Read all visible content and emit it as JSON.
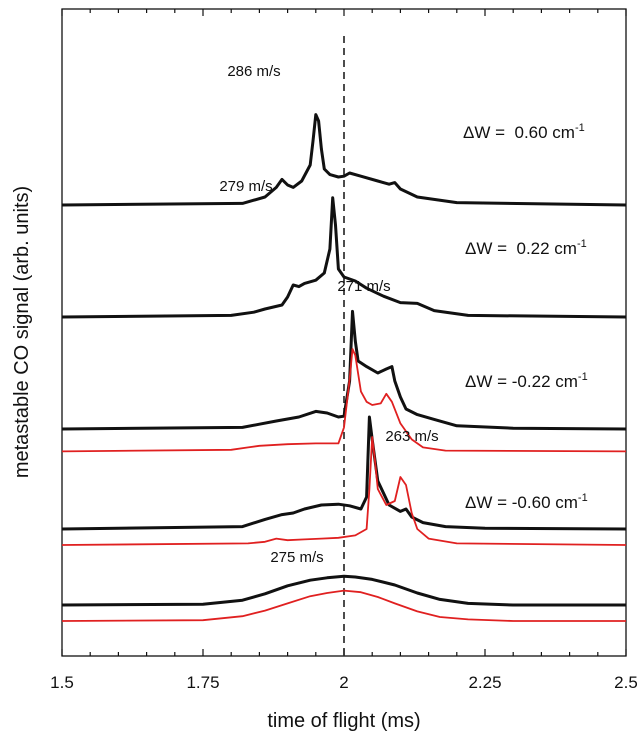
{
  "chart_data": {
    "type": "line",
    "xlabel": "time of flight (ms)",
    "ylabel": "metastable CO signal (arb. units)",
    "xlim": [
      1.5,
      2.5
    ],
    "x_ticks": [
      "1.5",
      "1.75",
      "2",
      "2.25",
      "2.5"
    ],
    "vline_x": 2.0,
    "colors": {
      "black": "#111111",
      "red": "#e02020"
    },
    "traces": [
      {
        "color": "black",
        "offset": 5.0,
        "dW_label": "ΔW =  0.60 cm",
        "dW_sup": "-1",
        "peak_label": "286 m/s",
        "points": [
          [
            1.5,
            0
          ],
          [
            1.82,
            0.02
          ],
          [
            1.86,
            0.1
          ],
          [
            1.88,
            0.22
          ],
          [
            1.89,
            0.32
          ],
          [
            1.9,
            0.25
          ],
          [
            1.91,
            0.22
          ],
          [
            1.925,
            0.3
          ],
          [
            1.94,
            0.5
          ],
          [
            1.945,
            0.8
          ],
          [
            1.95,
            1.13
          ],
          [
            1.955,
            1.05
          ],
          [
            1.96,
            0.7
          ],
          [
            1.965,
            0.45
          ],
          [
            1.975,
            0.38
          ],
          [
            1.99,
            0.35
          ],
          [
            2.0,
            0.36
          ],
          [
            2.01,
            0.4
          ],
          [
            2.03,
            0.36
          ],
          [
            2.06,
            0.3
          ],
          [
            2.08,
            0.26
          ],
          [
            2.09,
            0.28
          ],
          [
            2.1,
            0.2
          ],
          [
            2.13,
            0.1
          ],
          [
            2.2,
            0.03
          ],
          [
            2.5,
            0
          ]
        ]
      },
      {
        "color": "black",
        "offset": 3.6,
        "dW_label": "ΔW =  0.22 cm",
        "dW_sup": "-1",
        "peak_label": "279 m/s",
        "points": [
          [
            1.5,
            0
          ],
          [
            1.8,
            0.02
          ],
          [
            1.84,
            0.06
          ],
          [
            1.86,
            0.1
          ],
          [
            1.89,
            0.15
          ],
          [
            1.9,
            0.25
          ],
          [
            1.91,
            0.4
          ],
          [
            1.92,
            0.38
          ],
          [
            1.93,
            0.42
          ],
          [
            1.95,
            0.46
          ],
          [
            1.965,
            0.55
          ],
          [
            1.975,
            0.85
          ],
          [
            1.98,
            1.49
          ],
          [
            1.985,
            1.15
          ],
          [
            1.99,
            0.6
          ],
          [
            2.0,
            0.5
          ],
          [
            2.02,
            0.45
          ],
          [
            2.04,
            0.36
          ],
          [
            2.07,
            0.26
          ],
          [
            2.1,
            0.18
          ],
          [
            2.13,
            0.17
          ],
          [
            2.16,
            0.08
          ],
          [
            2.22,
            0.02
          ],
          [
            2.5,
            0
          ]
        ]
      },
      {
        "color": "black",
        "offset": 2.2,
        "dW_label": "ΔW = -0.22 cm",
        "dW_sup": "-1",
        "peak_label": "271 m/s",
        "points": [
          [
            1.5,
            0
          ],
          [
            1.82,
            0.02
          ],
          [
            1.85,
            0.06
          ],
          [
            1.88,
            0.1
          ],
          [
            1.92,
            0.15
          ],
          [
            1.95,
            0.22
          ],
          [
            1.97,
            0.2
          ],
          [
            1.99,
            0.15
          ],
          [
            2.0,
            0.16
          ],
          [
            2.01,
            0.6
          ],
          [
            2.015,
            1.47
          ],
          [
            2.02,
            1.1
          ],
          [
            2.025,
            0.85
          ],
          [
            2.04,
            0.78
          ],
          [
            2.06,
            0.7
          ],
          [
            2.075,
            0.75
          ],
          [
            2.085,
            0.78
          ],
          [
            2.09,
            0.6
          ],
          [
            2.1,
            0.4
          ],
          [
            2.11,
            0.25
          ],
          [
            2.13,
            0.18
          ],
          [
            2.16,
            0.12
          ],
          [
            2.2,
            0.04
          ],
          [
            2.3,
            0.01
          ],
          [
            2.5,
            0
          ]
        ]
      },
      {
        "color": "red",
        "offset": 1.92,
        "dW_label": "",
        "dW_sup": "",
        "peak_label": "",
        "points": [
          [
            1.5,
            0
          ],
          [
            1.8,
            0.02
          ],
          [
            1.83,
            0.05
          ],
          [
            1.85,
            0.07
          ],
          [
            1.9,
            0.09
          ],
          [
            1.95,
            0.1
          ],
          [
            1.99,
            0.1
          ],
          [
            2.0,
            0.3
          ],
          [
            2.01,
            0.9
          ],
          [
            2.015,
            1.28
          ],
          [
            2.02,
            1.2
          ],
          [
            2.03,
            0.75
          ],
          [
            2.04,
            0.62
          ],
          [
            2.05,
            0.58
          ],
          [
            2.065,
            0.6
          ],
          [
            2.075,
            0.72
          ],
          [
            2.085,
            0.62
          ],
          [
            2.1,
            0.35
          ],
          [
            2.12,
            0.15
          ],
          [
            2.14,
            0.05
          ],
          [
            2.18,
            0.01
          ],
          [
            2.5,
            0
          ]
        ]
      },
      {
        "color": "black",
        "offset": 0.95,
        "dW_label": "ΔW = -0.60 cm",
        "dW_sup": "-1",
        "peak_label": "263 m/s",
        "points": [
          [
            1.5,
            0
          ],
          [
            1.82,
            0.03
          ],
          [
            1.86,
            0.12
          ],
          [
            1.89,
            0.18
          ],
          [
            1.91,
            0.2
          ],
          [
            1.93,
            0.25
          ],
          [
            1.96,
            0.3
          ],
          [
            1.99,
            0.31
          ],
          [
            2.01,
            0.29
          ],
          [
            2.03,
            0.25
          ],
          [
            2.04,
            0.4
          ],
          [
            2.045,
            1.4
          ],
          [
            2.05,
            1.12
          ],
          [
            2.06,
            0.6
          ],
          [
            2.08,
            0.3
          ],
          [
            2.1,
            0.22
          ],
          [
            2.11,
            0.25
          ],
          [
            2.12,
            0.15
          ],
          [
            2.14,
            0.08
          ],
          [
            2.18,
            0.03
          ],
          [
            2.25,
            0.01
          ],
          [
            2.5,
            0
          ]
        ]
      },
      {
        "color": "red",
        "offset": 0.75,
        "dW_label": "",
        "dW_sup": "",
        "peak_label": "",
        "points": [
          [
            1.5,
            0
          ],
          [
            1.83,
            0.02
          ],
          [
            1.86,
            0.04
          ],
          [
            1.88,
            0.08
          ],
          [
            1.9,
            0.06
          ],
          [
            1.93,
            0.07
          ],
          [
            1.96,
            0.08
          ],
          [
            1.99,
            0.09
          ],
          [
            2.02,
            0.12
          ],
          [
            2.04,
            0.2
          ],
          [
            2.045,
            0.7
          ],
          [
            2.05,
            1.35
          ],
          [
            2.055,
            1.05
          ],
          [
            2.06,
            0.7
          ],
          [
            2.075,
            0.5
          ],
          [
            2.09,
            0.55
          ],
          [
            2.1,
            0.85
          ],
          [
            2.11,
            0.75
          ],
          [
            2.12,
            0.4
          ],
          [
            2.13,
            0.2
          ],
          [
            2.15,
            0.08
          ],
          [
            2.2,
            0.02
          ],
          [
            2.5,
            0
          ]
        ]
      },
      {
        "color": "black",
        "offset": 0.0,
        "dW_label": "",
        "dW_sup": "",
        "peak_label": "275 m/s",
        "points": [
          [
            1.5,
            0
          ],
          [
            1.75,
            0.01
          ],
          [
            1.82,
            0.06
          ],
          [
            1.86,
            0.14
          ],
          [
            1.9,
            0.24
          ],
          [
            1.94,
            0.31
          ],
          [
            1.97,
            0.34
          ],
          [
            2.0,
            0.36
          ],
          [
            2.02,
            0.35
          ],
          [
            2.05,
            0.32
          ],
          [
            2.09,
            0.25
          ],
          [
            2.13,
            0.15
          ],
          [
            2.17,
            0.07
          ],
          [
            2.22,
            0.02
          ],
          [
            2.3,
            0
          ],
          [
            2.5,
            0
          ]
        ]
      },
      {
        "color": "red",
        "offset": -0.2,
        "dW_label": "",
        "dW_sup": "",
        "peak_label": "",
        "points": [
          [
            1.5,
            0
          ],
          [
            1.75,
            0.01
          ],
          [
            1.82,
            0.06
          ],
          [
            1.86,
            0.13
          ],
          [
            1.9,
            0.22
          ],
          [
            1.94,
            0.31
          ],
          [
            1.97,
            0.35
          ],
          [
            2.0,
            0.38
          ],
          [
            2.03,
            0.36
          ],
          [
            2.06,
            0.3
          ],
          [
            2.09,
            0.22
          ],
          [
            2.13,
            0.12
          ],
          [
            2.17,
            0.05
          ],
          [
            2.22,
            0.02
          ],
          [
            2.3,
            0
          ],
          [
            2.5,
            0
          ]
        ]
      }
    ]
  }
}
